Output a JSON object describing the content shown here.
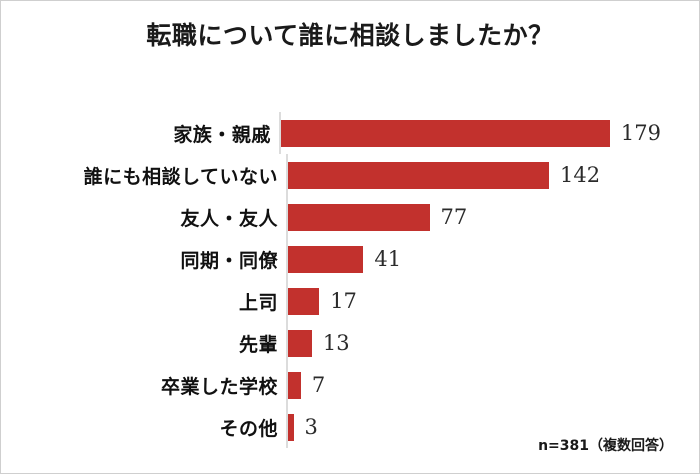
{
  "chart_data": {
    "type": "bar",
    "orientation": "horizontal",
    "title": "転職について誰に相談しましたか？",
    "categories": [
      "家族・親戚",
      "誰にも相談していない",
      "友人・友人",
      "同期・同僚",
      "上司",
      "先輩",
      "卒業した学校",
      "その他"
    ],
    "values": [
      179,
      142,
      77,
      41,
      17,
      13,
      7,
      3
    ],
    "xlim": [
      0,
      190
    ],
    "grid": false,
    "value_labels": true,
    "legend": "none",
    "bar_color": "#c2312d",
    "axis_line_color": "#dcdcdc",
    "note": "n=381（複数回答）"
  }
}
